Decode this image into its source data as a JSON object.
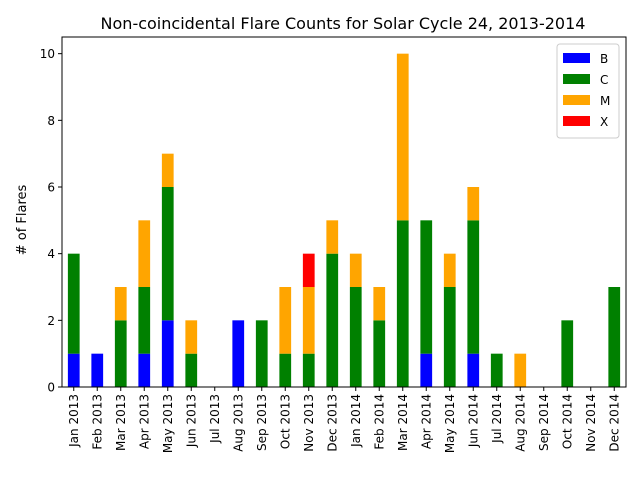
{
  "chart_data": {
    "type": "bar",
    "stacked": true,
    "title": "Non-coincidental Flare Counts for Solar Cycle 24, 2013-2014",
    "xlabel": "",
    "ylabel": "# of Flares",
    "ylim": [
      0,
      10.5
    ],
    "yticks": [
      0,
      2,
      4,
      6,
      8,
      10
    ],
    "grid": false,
    "legend_position": "top-right",
    "categories": [
      "Jan 2013",
      "Feb 2013",
      "Mar 2013",
      "Apr 2013",
      "May 2013",
      "Jun 2013",
      "Jul 2013",
      "Aug 2013",
      "Sep 2013",
      "Oct 2013",
      "Nov 2013",
      "Dec 2013",
      "Jan 2014",
      "Feb 2014",
      "Mar 2014",
      "Apr 2014",
      "May 2014",
      "Jun 2014",
      "Jul 2014",
      "Aug 2014",
      "Sep 2014",
      "Oct 2014",
      "Nov 2014",
      "Dec 2014"
    ],
    "series": [
      {
        "name": "B",
        "color": "#0000ff",
        "values": [
          1,
          1,
          0,
          1,
          2,
          0,
          0,
          2,
          0,
          0,
          0,
          0,
          0,
          0,
          0,
          1,
          0,
          1,
          0,
          0,
          0,
          0,
          0,
          0
        ]
      },
      {
        "name": "C",
        "color": "#008000",
        "values": [
          3,
          0,
          2,
          2,
          4,
          1,
          0,
          0,
          2,
          1,
          1,
          4,
          3,
          2,
          5,
          4,
          3,
          4,
          1,
          0,
          0,
          2,
          0,
          3
        ]
      },
      {
        "name": "M",
        "color": "#ffa500",
        "values": [
          0,
          0,
          1,
          2,
          1,
          1,
          0,
          0,
          0,
          2,
          2,
          1,
          1,
          1,
          5,
          0,
          1,
          1,
          0,
          1,
          0,
          0,
          0,
          0
        ]
      },
      {
        "name": "X",
        "color": "#ff0000",
        "values": [
          0,
          0,
          0,
          0,
          0,
          0,
          0,
          0,
          0,
          0,
          1,
          0,
          0,
          0,
          0,
          0,
          0,
          0,
          0,
          0,
          0,
          0,
          0,
          0
        ]
      }
    ]
  }
}
